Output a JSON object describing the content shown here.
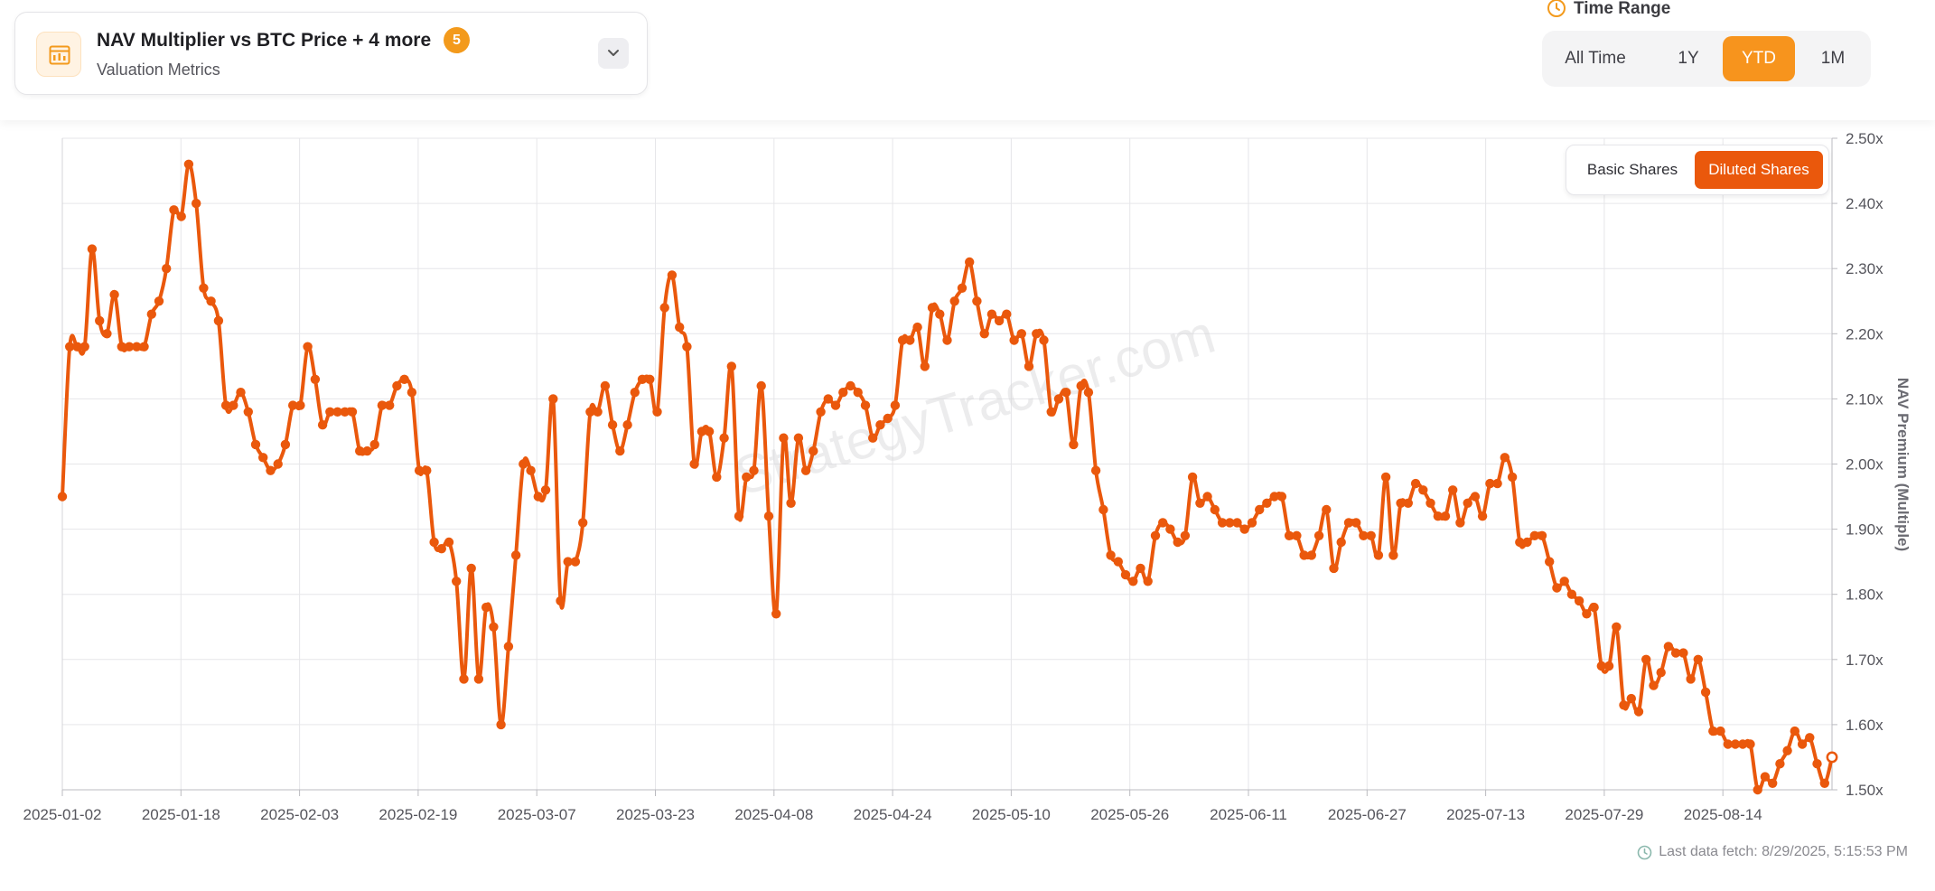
{
  "selector": {
    "title": "NAV Multiplier vs BTC Price + 4 more",
    "badge": "5",
    "subtitle": "Valuation Metrics",
    "icon": "chart-table-icon",
    "toggle_icon": "chevron-down-icon"
  },
  "time_range": {
    "label": "Time Range",
    "icon": "clock-icon",
    "options": [
      "All Time",
      "1Y",
      "YTD",
      "1M"
    ],
    "active": "YTD"
  },
  "shares_toggle": {
    "options": [
      "Basic Shares",
      "Diluted Shares"
    ],
    "active": "Diluted Shares"
  },
  "watermark": "StrategyTracker.com",
  "footer": {
    "last_fetch": "Last data fetch: 8/29/2025, 5:15:53 PM",
    "icon": "clock-icon"
  },
  "colors": {
    "accent": "#f7941d",
    "line": "#ea580c",
    "active_button": "#ea580c"
  },
  "chart_data": {
    "type": "line",
    "ylabel": "NAV Premium (Multiple)",
    "yaxis_position": "right",
    "ylim": [
      1.5,
      2.5
    ],
    "ytick_labels": [
      "1.50x",
      "1.60x",
      "1.70x",
      "1.80x",
      "1.90x",
      "2.00x",
      "2.10x",
      "2.20x",
      "2.30x",
      "2.40x",
      "2.50x"
    ],
    "xtick_labels": [
      "2025-01-02",
      "2025-01-18",
      "2025-02-03",
      "2025-02-19",
      "2025-03-07",
      "2025-03-23",
      "2025-04-08",
      "2025-04-24",
      "2025-05-10",
      "2025-05-26",
      "2025-06-11",
      "2025-06-27",
      "2025-07-13",
      "2025-07-29",
      "2025-08-14"
    ],
    "grid": true,
    "series": [
      {
        "values": [
          1.95,
          2.18,
          2.18,
          2.18,
          2.33,
          2.22,
          2.2,
          2.26,
          2.18,
          2.18,
          2.18,
          2.18,
          2.23,
          2.25,
          2.3,
          2.39,
          2.38,
          2.46,
          2.4,
          2.27,
          2.25,
          2.22,
          2.09,
          2.09,
          2.11,
          2.08,
          2.03,
          2.01,
          1.99,
          2.0,
          2.03,
          2.09,
          2.09,
          2.18,
          2.13,
          2.06,
          2.08,
          2.08,
          2.08,
          2.08,
          2.02,
          2.02,
          2.03,
          2.09,
          2.09,
          2.12,
          2.13,
          2.11,
          1.99,
          1.99,
          1.88,
          1.87,
          1.88,
          1.82,
          1.67,
          1.84,
          1.67,
          1.78,
          1.75,
          1.6,
          1.72,
          1.86,
          2.0,
          1.99,
          1.95,
          1.96,
          2.1,
          1.79,
          1.85,
          1.85,
          1.91,
          2.08,
          2.08,
          2.12,
          2.06,
          2.02,
          2.06,
          2.11,
          2.13,
          2.13,
          2.08,
          2.24,
          2.29,
          2.21,
          2.18,
          2.0,
          2.05,
          2.05,
          1.98,
          2.04,
          2.15,
          1.92,
          1.98,
          1.99,
          2.12,
          1.92,
          1.77,
          2.04,
          1.94,
          2.04,
          1.99,
          2.02,
          2.08,
          2.1,
          2.09,
          2.11,
          2.12,
          2.11,
          2.09,
          2.04,
          2.06,
          2.07,
          2.09,
          2.19,
          2.19,
          2.21,
          2.15,
          2.24,
          2.23,
          2.19,
          2.25,
          2.27,
          2.31,
          2.25,
          2.2,
          2.23,
          2.22,
          2.23,
          2.19,
          2.2,
          2.15,
          2.2,
          2.19,
          2.08,
          2.1,
          2.11,
          2.03,
          2.12,
          2.11,
          1.99,
          1.93,
          1.86,
          1.85,
          1.83,
          1.82,
          1.84,
          1.82,
          1.89,
          1.91,
          1.9,
          1.88,
          1.89,
          1.98,
          1.94,
          1.95,
          1.93,
          1.91,
          1.91,
          1.91,
          1.9,
          1.91,
          1.93,
          1.94,
          1.95,
          1.95,
          1.89,
          1.89,
          1.86,
          1.86,
          1.89,
          1.93,
          1.84,
          1.88,
          1.91,
          1.91,
          1.89,
          1.89,
          1.86,
          1.98,
          1.86,
          1.94,
          1.94,
          1.97,
          1.96,
          1.94,
          1.92,
          1.92,
          1.96,
          1.91,
          1.94,
          1.95,
          1.92,
          1.97,
          1.97,
          2.01,
          1.98,
          1.88,
          1.88,
          1.89,
          1.89,
          1.85,
          1.81,
          1.82,
          1.8,
          1.79,
          1.77,
          1.78,
          1.69,
          1.69,
          1.75,
          1.63,
          1.64,
          1.62,
          1.7,
          1.66,
          1.68,
          1.72,
          1.71,
          1.71,
          1.67,
          1.7,
          1.65,
          1.59,
          1.59,
          1.57,
          1.57,
          1.57,
          1.57,
          1.5,
          1.52,
          1.51,
          1.54,
          1.56,
          1.59,
          1.57,
          1.58,
          1.54,
          1.51,
          1.55
        ]
      }
    ]
  }
}
